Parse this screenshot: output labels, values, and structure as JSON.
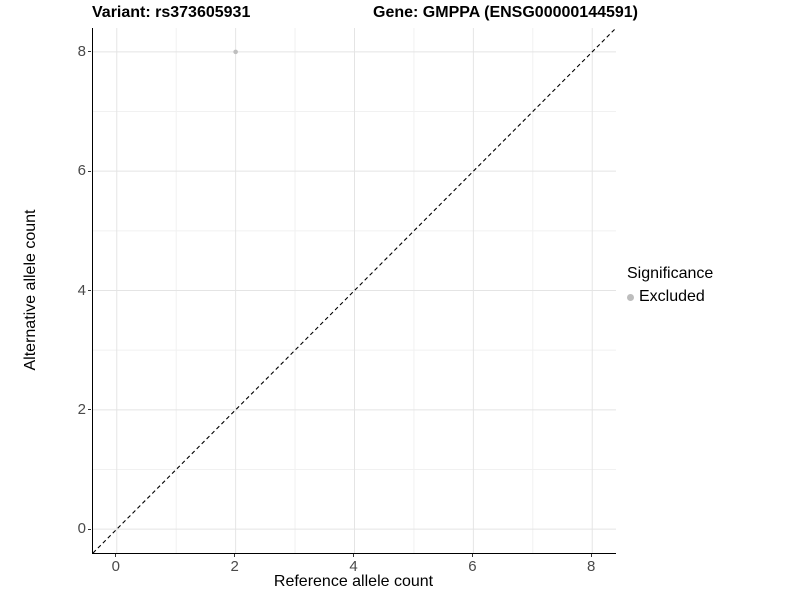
{
  "titles": {
    "left": "Variant: rs373605931",
    "right": "Gene: GMPPA (ENSG00000144591)"
  },
  "chart_data": {
    "type": "scatter",
    "title_left": "Variant: rs373605931",
    "title_right": "Gene: GMPPA (ENSG00000144591)",
    "xlabel": "Reference allele count",
    "ylabel": "Alternative allele count",
    "xlim": [
      -0.4,
      8.4
    ],
    "ylim": [
      -0.4,
      8.4
    ],
    "x_ticks": [
      0,
      2,
      4,
      6,
      8
    ],
    "y_ticks": [
      0,
      2,
      4,
      6,
      8
    ],
    "x_minor_ticks": [
      1,
      3,
      5,
      7
    ],
    "y_minor_ticks": [
      1,
      3,
      5,
      7
    ],
    "grid": true,
    "points": [
      {
        "x": 2,
        "y": 8,
        "series": "Excluded"
      }
    ],
    "reference_line": {
      "slope": 1,
      "intercept": 0,
      "style": "dashed",
      "color": "#000000"
    },
    "legend": {
      "title": "Significance",
      "position": "right",
      "entries": [
        {
          "label": "Excluded",
          "color": "#bdbdbd",
          "marker": "circle"
        }
      ]
    },
    "colors": {
      "point": "#bebebe",
      "grid_major": "#e4e4e4",
      "grid_minor": "#f1f1f1",
      "axis_line": "#000000",
      "tick_text": "#4a4a4a",
      "background": "#ffffff"
    }
  }
}
